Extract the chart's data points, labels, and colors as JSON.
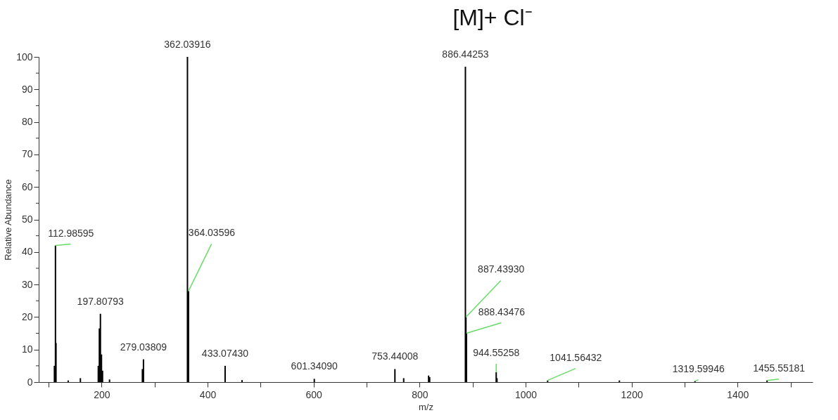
{
  "chart_data": {
    "type": "bar",
    "title": "[M]+ Cl⁻",
    "xlabel": "m/z",
    "ylabel": "Relative Abundance",
    "x": [
      111,
      112.98595,
      114,
      137,
      160,
      193.8,
      195.8,
      197.80793,
      199.8,
      201.8,
      215,
      277,
      279.03809,
      362.03916,
      364.03596,
      433.0743,
      465,
      601.3409,
      753.44008,
      770,
      817,
      819,
      886.44253,
      887.4393,
      888.43476,
      944.55258,
      946,
      1041.56432,
      1177,
      1319.59946,
      1455.55181
    ],
    "series": [
      {
        "color": "#000000",
        "values": [
          5,
          42,
          12,
          0.5,
          1.2,
          5,
          16.5,
          21,
          8.5,
          3.5,
          0.8,
          4,
          7,
          100,
          28,
          5,
          0.6,
          1,
          4,
          1.2,
          2,
          1.5,
          97,
          20,
          15,
          3,
          1.2,
          0.5,
          0.5,
          0.3,
          0.5
        ]
      }
    ],
    "annotations": [
      {
        "text": "112.98595",
        "x": 112.98595,
        "y": 42
      },
      {
        "text": "197.80793",
        "x": 197.80793,
        "y": 21
      },
      {
        "text": "279.03809",
        "x": 279.03809,
        "y": 7
      },
      {
        "text": "362.03916",
        "x": 362.03916,
        "y": 100
      },
      {
        "text": "364.03596",
        "x": 364.03596,
        "y": 28
      },
      {
        "text": "433.07430",
        "x": 433.0743,
        "y": 5
      },
      {
        "text": "601.34090",
        "x": 601.3409,
        "y": 1
      },
      {
        "text": "753.44008",
        "x": 753.44008,
        "y": 4
      },
      {
        "text": "886.44253",
        "x": 886.44253,
        "y": 97
      },
      {
        "text": "887.43930",
        "x": 887.4393,
        "y": 20
      },
      {
        "text": "888.43476",
        "x": 888.43476,
        "y": 15
      },
      {
        "text": "944.55258",
        "x": 944.55258,
        "y": 3
      },
      {
        "text": "1041.56432",
        "x": 1041.56432,
        "y": 0.5
      },
      {
        "text": "1319.59946",
        "x": 1319.59946,
        "y": 0.3
      },
      {
        "text": "1455.55181",
        "x": 1455.55181,
        "y": 0.5
      }
    ],
    "xlim": [
      88,
      1535
    ],
    "xticks": [
      {
        "value": 100,
        "label": null
      },
      200,
      {
        "value": 300,
        "label": null
      },
      400,
      {
        "value": 500,
        "label": null
      },
      600,
      {
        "value": 700,
        "label": null
      },
      800,
      {
        "value": 900,
        "label": null
      },
      1000,
      {
        "value": 1100,
        "label": null
      },
      1200,
      {
        "value": 1300,
        "label": null
      },
      1400,
      {
        "value": 1500,
        "label": null
      }
    ],
    "ylim": [
      0,
      100
    ],
    "yticks": [
      0,
      {
        "value": 5,
        "label": null
      },
      10,
      {
        "value": 15,
        "label": null
      },
      20,
      {
        "value": 25,
        "label": null
      },
      30,
      {
        "value": 35,
        "label": null
      },
      40,
      {
        "value": 45,
        "label": null
      },
      50,
      {
        "value": 55,
        "label": null
      },
      60,
      {
        "value": 65,
        "label": null
      },
      70,
      {
        "value": 75,
        "label": null
      },
      80,
      {
        "value": 85,
        "label": null
      },
      90,
      {
        "value": 95,
        "label": null
      },
      100
    ],
    "grid": false
  }
}
